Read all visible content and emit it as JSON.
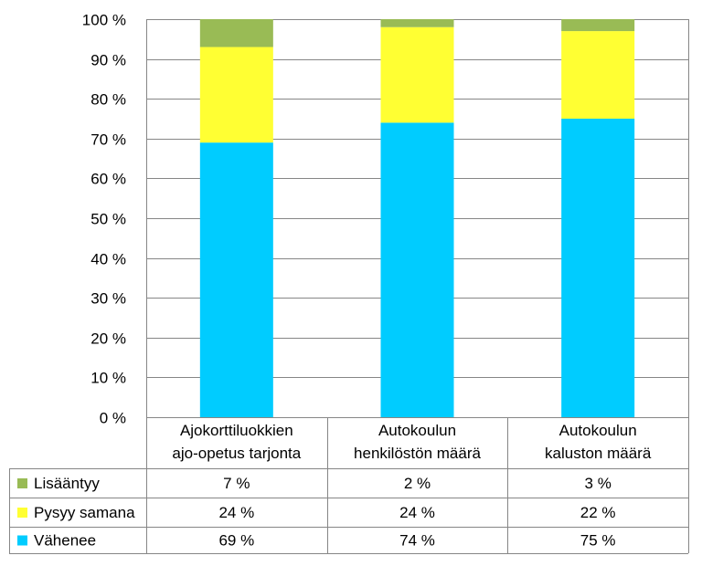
{
  "chart_data": {
    "type": "bar",
    "stacked": true,
    "percent": true,
    "categories": [
      [
        "Ajokorttiluokkien",
        "ajo-opetus tarjonta"
      ],
      [
        "Autokoulun",
        "henkilöstön määrä"
      ],
      [
        "Autokoulun",
        "kaluston määrä"
      ]
    ],
    "series": [
      {
        "name": "Vähenee",
        "color": "#00CCFF",
        "values": [
          69,
          74,
          75
        ],
        "labels": [
          "69 %",
          "74 %",
          "75 %"
        ]
      },
      {
        "name": "Pysyy samana",
        "color": "#FFFF33",
        "values": [
          24,
          24,
          22
        ],
        "labels": [
          "24 %",
          "24 %",
          "22 %"
        ]
      },
      {
        "name": "Lisääntyy",
        "color": "#99BB55",
        "values": [
          7,
          2,
          3
        ],
        "labels": [
          "7 %",
          "2 %",
          "3 %"
        ]
      }
    ],
    "table_row_order": [
      "Lisääntyy",
      "Pysyy samana",
      "Vähenee"
    ],
    "ylim": [
      0,
      100
    ],
    "yticks": [
      "0 %",
      "10 %",
      "20 %",
      "30 %",
      "40 %",
      "50 %",
      "60 %",
      "70 %",
      "80 %",
      "90 %",
      "100 %"
    ],
    "grid": true,
    "legend": "data-table",
    "gridline_color": "#868686"
  }
}
